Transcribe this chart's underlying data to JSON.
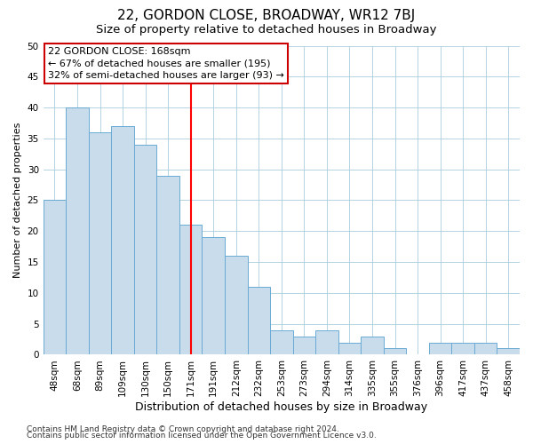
{
  "title": "22, GORDON CLOSE, BROADWAY, WR12 7BJ",
  "subtitle": "Size of property relative to detached houses in Broadway",
  "xlabel": "Distribution of detached houses by size in Broadway",
  "ylabel": "Number of detached properties",
  "footnote1": "Contains HM Land Registry data © Crown copyright and database right 2024.",
  "footnote2": "Contains public sector information licensed under the Open Government Licence v3.0.",
  "bar_color": "#c8dcec",
  "bar_edge_color": "#6aaad4",
  "vline_color": "red",
  "vline_index": 6,
  "annotation_title": "22 GORDON CLOSE: 168sqm",
  "annotation_line1": "← 67% of detached houses are smaller (195)",
  "annotation_line2": "32% of semi-detached houses are larger (93) →",
  "annotation_box_facecolor": "white",
  "annotation_box_edgecolor": "#cc0000",
  "categories": [
    "48sqm",
    "68sqm",
    "89sqm",
    "109sqm",
    "130sqm",
    "150sqm",
    "171sqm",
    "191sqm",
    "212sqm",
    "232sqm",
    "253sqm",
    "273sqm",
    "294sqm",
    "314sqm",
    "335sqm",
    "355sqm",
    "376sqm",
    "396sqm",
    "417sqm",
    "437sqm",
    "458sqm"
  ],
  "values": [
    25,
    40,
    36,
    37,
    34,
    29,
    21,
    19,
    16,
    11,
    4,
    3,
    4,
    2,
    3,
    1,
    0,
    2,
    2,
    2,
    1
  ],
  "ylim": [
    0,
    50
  ],
  "yticks": [
    0,
    5,
    10,
    15,
    20,
    25,
    30,
    35,
    40,
    45,
    50
  ],
  "title_fontsize": 11,
  "subtitle_fontsize": 9.5,
  "xlabel_fontsize": 9,
  "ylabel_fontsize": 8,
  "tick_fontsize": 7.5,
  "annotation_fontsize": 8,
  "footnote_fontsize": 6.5
}
